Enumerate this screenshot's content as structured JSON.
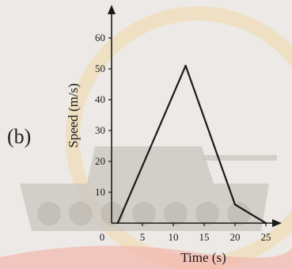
{
  "figure": {
    "part_label": "(b)",
    "colors": {
      "background": "#ece9e6",
      "axis": "#1a1a1a",
      "line": "#1a1a1a",
      "watermark_tank": "#c9c6bf",
      "watermark_ring": "#f2d9a6",
      "watermark_band": "#f3b7ae"
    },
    "watermark": "tank-photo-faded"
  },
  "chart_data": {
    "type": "line",
    "title": "",
    "xlabel": "Time (s)",
    "ylabel": "Speed (m/s)",
    "xlim": [
      0,
      27
    ],
    "ylim": [
      0,
      65
    ],
    "x_ticks": [
      0,
      5,
      10,
      15,
      20,
      25
    ],
    "y_ticks": [
      10,
      20,
      30,
      40,
      50,
      60
    ],
    "grid": false,
    "series": [
      {
        "x": [
          1,
          12,
          20,
          25
        ],
        "y": [
          0,
          51,
          6,
          0
        ]
      }
    ]
  }
}
